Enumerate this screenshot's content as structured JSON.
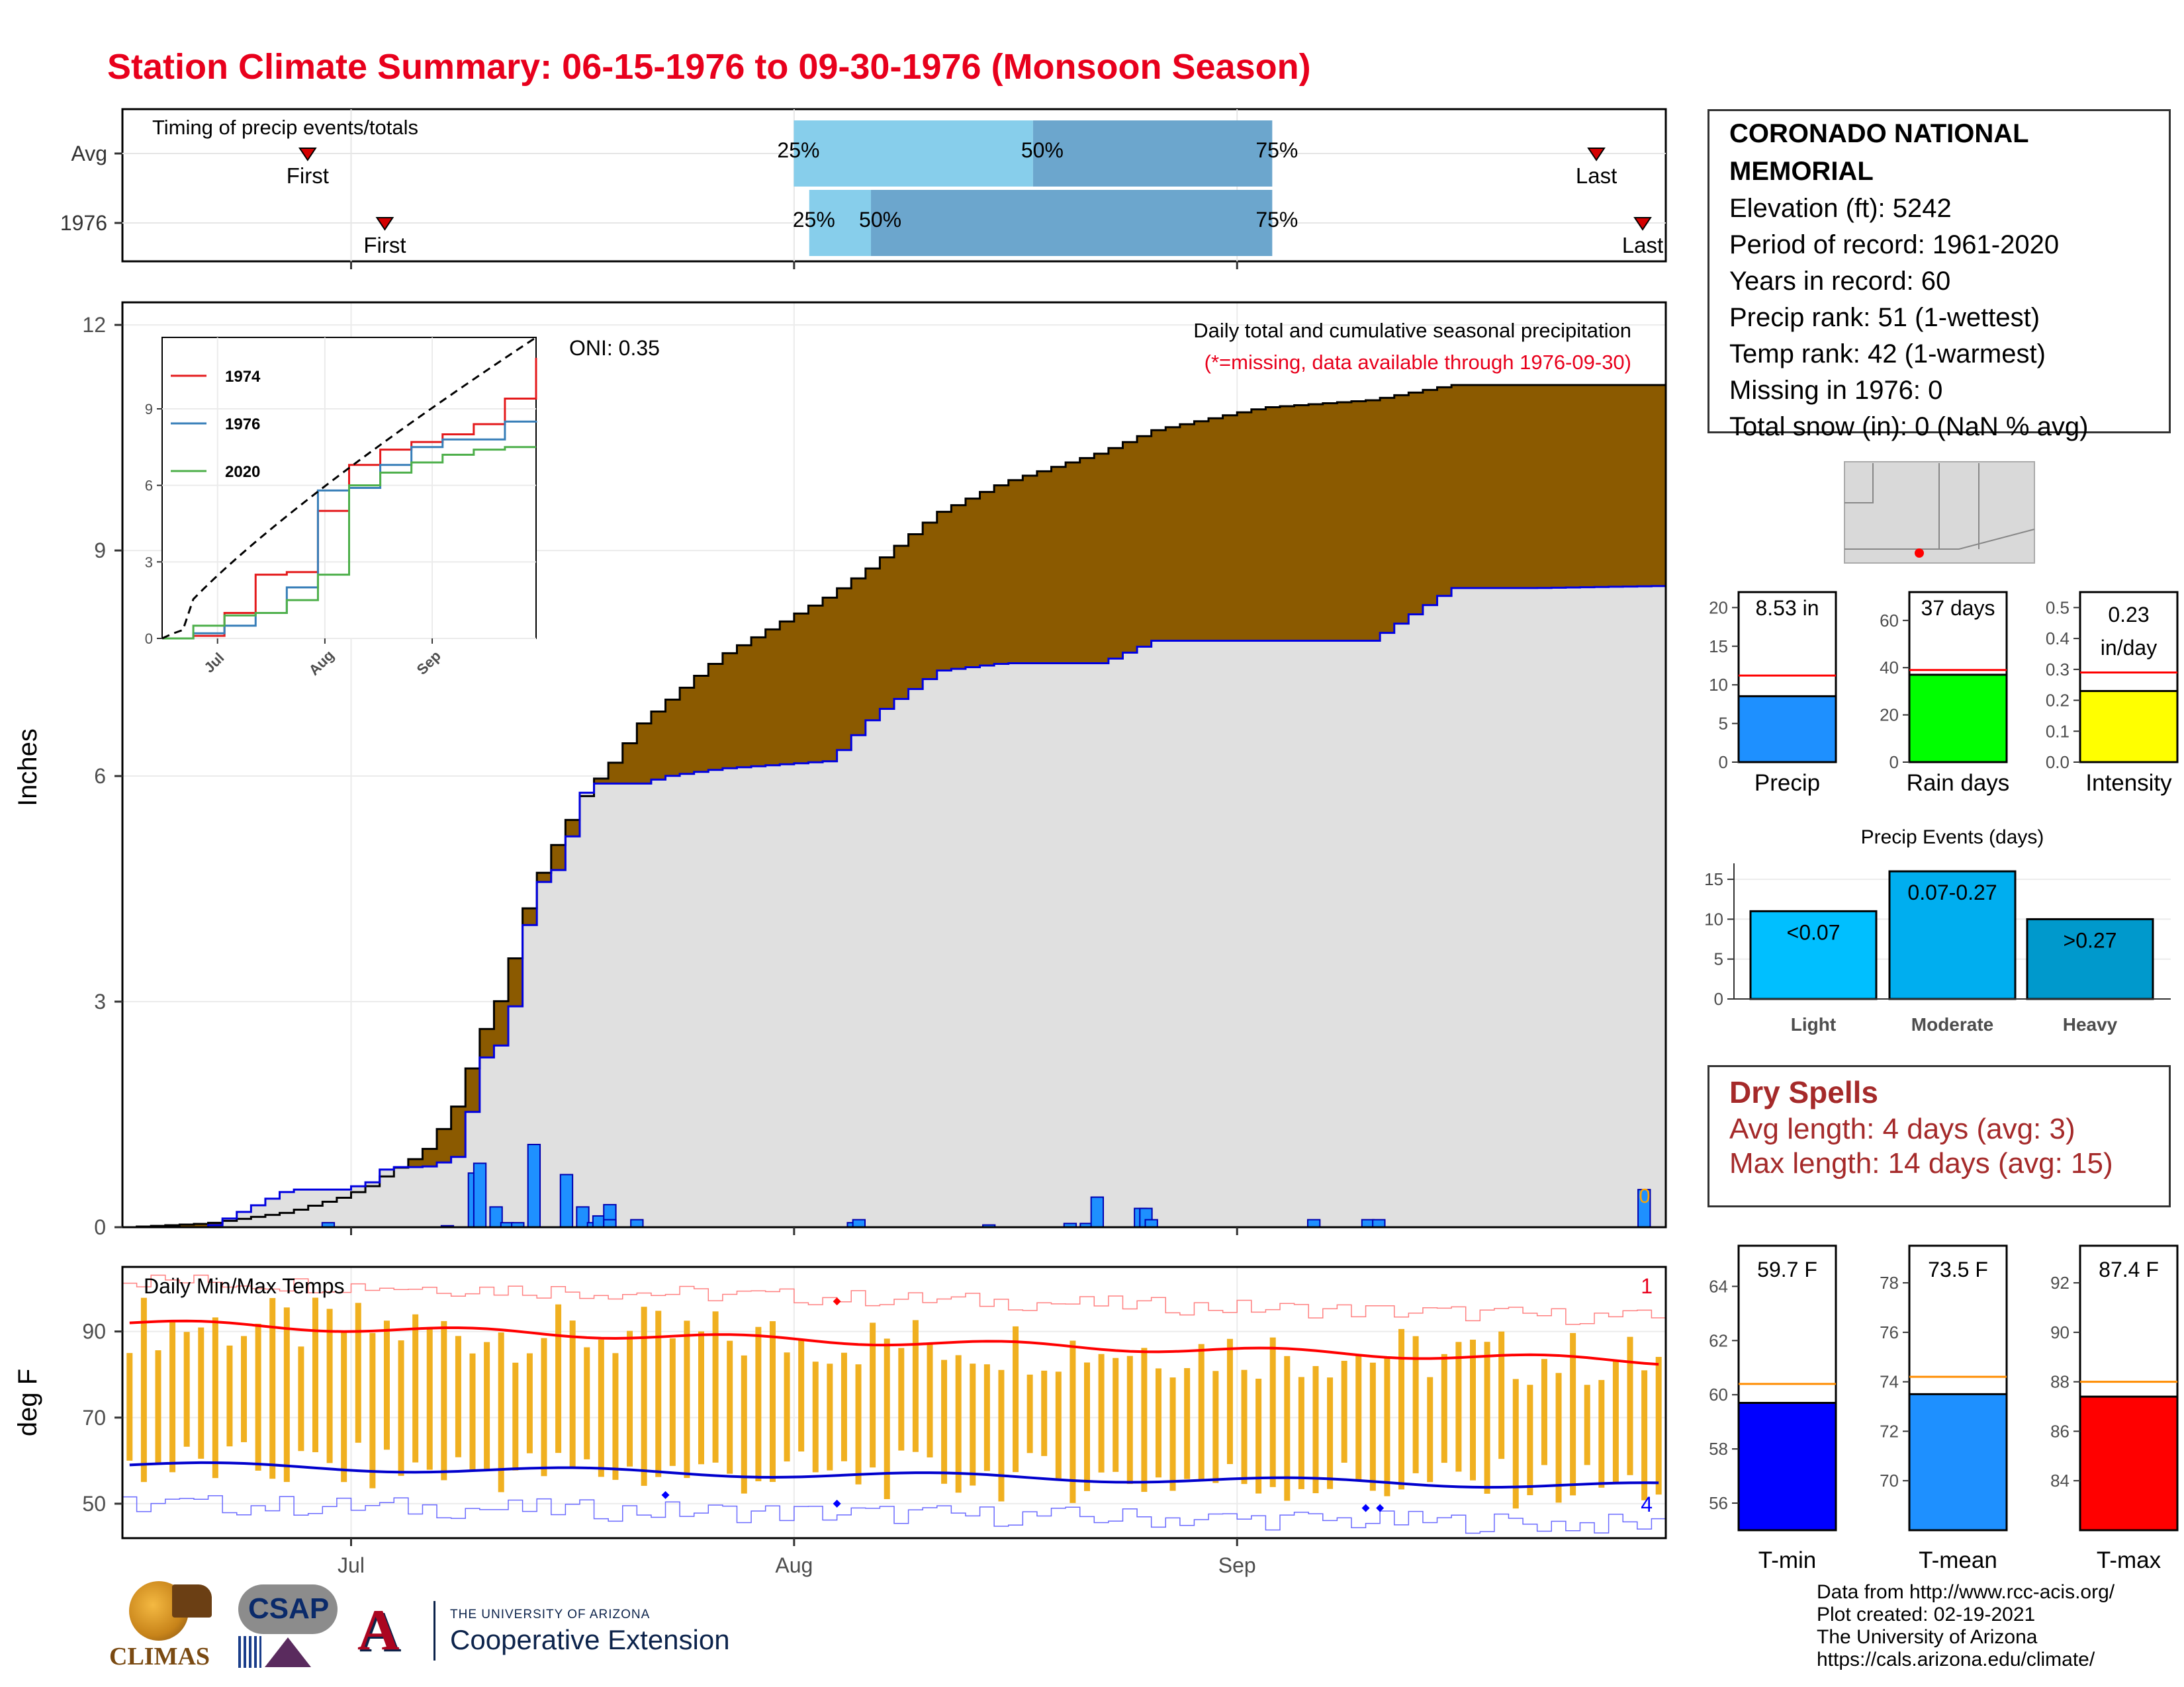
{
  "title": "Station Climate Summary: 06-15-1976 to 09-30-1976 (Monsoon Season)",
  "colors": {
    "title": "#e8001c",
    "brown": "#8b5a00",
    "green": "#008000",
    "grey": "#e0e0e0",
    "blue_bar": "#1e90ff",
    "tmax": "#ff0000",
    "tmin": "#0000cd",
    "range": "#f0b020",
    "avg_line": "#ff8c00",
    "dry": "#a52a2a"
  },
  "timing": {
    "title": "Timing of precip events/totals",
    "rows": [
      {
        "label": "Avg",
        "first": "First",
        "last": "Last",
        "p25": "25%",
        "p50": "50%",
        "p75": "75%",
        "first_day": 24,
        "p25_day": 87,
        "p50_day": 118,
        "p75_day": 149,
        "last_day": 191
      },
      {
        "label": "1976",
        "first": "First",
        "last": "Last",
        "p25": "25%",
        "p50": "50%",
        "p75": "75%",
        "first_day": 34,
        "p25_day": 89,
        "p50_day": 97,
        "p75_day": 149,
        "last_day": 197
      }
    ]
  },
  "station": {
    "name": "CORONADO NATIONAL MEMORIAL",
    "lines": [
      "Elevation (ft): 5242",
      "Period of record: 1961-2020",
      "Years in record: 60",
      "Precip rank: 51 (1-wettest)",
      "Temp rank: 42 (1-warmest)",
      "Missing in 1976: 0",
      "Total snow (in): 0 (NaN % avg)"
    ]
  },
  "main_chart": {
    "ylabel": "Inches",
    "yticks": [
      "0",
      "3",
      "6",
      "9",
      "12"
    ],
    "xticks": [
      "Jul",
      "Aug",
      "Sep"
    ],
    "oni": "ONI: 0.35",
    "subtitle": "Daily total and cumulative seasonal precipitation",
    "missing_note": "(*=missing, data available through 1976-09-30)",
    "missing_count": "0"
  },
  "inset": {
    "legend": [
      "1974",
      "1976",
      "2020"
    ],
    "yticks": [
      "0",
      "3",
      "6",
      "9"
    ],
    "xticks": [
      "Jul",
      "Aug",
      "Sep"
    ]
  },
  "temp_chart": {
    "ylabel": "deg F",
    "title": "Daily Min/Max Temps",
    "yticks": [
      "50",
      "70",
      "90"
    ],
    "xticks": [
      "Jul",
      "Aug",
      "Sep"
    ],
    "max_count": "1",
    "min_count": "4"
  },
  "mini_bars": [
    {
      "label": "Precip",
      "value_text": "8.53 in",
      "value": 8.53,
      "avg": 11.2,
      "ymax": 22,
      "ticks": [
        "0",
        "5",
        "10",
        "15",
        "20"
      ],
      "color": "#1e90ff"
    },
    {
      "label": "Rain days",
      "value_text": "37 days",
      "value": 37,
      "avg": 39,
      "ymax": 72,
      "ticks": [
        "0",
        "20",
        "40",
        "60"
      ],
      "color": "#00ff00"
    },
    {
      "label": "Intensity",
      "value_text": "0.23 in/day",
      "value": 0.23,
      "avg": 0.29,
      "ymax": 0.55,
      "ticks": [
        "0.0",
        "0.1",
        "0.2",
        "0.3",
        "0.4",
        "0.5"
      ],
      "color": "#ffff00"
    }
  ],
  "events": {
    "title": "Precip Events (days)",
    "ticks": [
      "0",
      "5",
      "10",
      "15"
    ],
    "bars": [
      {
        "category": "Light",
        "label": "<0.07",
        "value": 11,
        "color": "#00bfff"
      },
      {
        "category": "Moderate",
        "label": "0.07-0.27",
        "value": 16,
        "color": "#00aeef"
      },
      {
        "category": "Heavy",
        "label": ">0.27",
        "value": 10,
        "color": "#0099cc"
      }
    ]
  },
  "dry_spells": {
    "title": "Dry Spells",
    "avg": "Avg length: 4 days (avg: 3)",
    "max": "Max length: 14 days (avg: 15)"
  },
  "temp_bars": [
    {
      "label": "T-min",
      "value_text": "59.7 F",
      "value": 59.7,
      "avg": 60.4,
      "ymin": 55,
      "ymax": 65.5,
      "ticks": [
        "56",
        "58",
        "60",
        "62",
        "64"
      ],
      "color": "#0000ff"
    },
    {
      "label": "T-mean",
      "value_text": "73.5 F",
      "value": 73.5,
      "avg": 74.2,
      "ymin": 68,
      "ymax": 79.5,
      "ticks": [
        "70",
        "72",
        "74",
        "76",
        "78"
      ],
      "color": "#1e90ff"
    },
    {
      "label": "T-max",
      "value_text": "87.4 F",
      "value": 87.4,
      "avg": 88.0,
      "ymin": 82,
      "ymax": 93.5,
      "ticks": [
        "84",
        "86",
        "88",
        "90",
        "92"
      ],
      "color": "#ff0000"
    }
  ],
  "footer": [
    "Data from http://www.rcc-acis.org/",
    "Plot created: 02-19-2021",
    "The University of Arizona",
    "https://cals.arizona.edu/climate/"
  ],
  "logos": {
    "climas": "CLIMAS",
    "csap": "CSAP",
    "ua_small": "THE UNIVERSITY OF ARIZONA",
    "ua_big": "Cooperative Extension"
  },
  "chart_data": [
    {
      "type": "area",
      "title": "Daily total and cumulative seasonal precipitation",
      "ylabel": "Inches",
      "ylim": [
        0,
        12.3
      ],
      "x_days_from_jun15": [
        0,
        15,
        30,
        40,
        45,
        48,
        55,
        60,
        62,
        65,
        70,
        72,
        75,
        80,
        85,
        90,
        95,
        100,
        110,
        130,
        138,
        150,
        162,
        180,
        190,
        210,
        230,
        245,
        260,
        285
      ],
      "cumulative_1976": [
        0,
        0.0,
        0.5,
        0.5,
        0.6,
        0.8,
        0.8,
        0.9,
        1.0,
        2.2,
        2.5,
        3.2,
        4.5,
        4.8,
        5.9,
        5.9,
        5.9,
        6.0,
        6.1,
        6.2,
        6.8,
        7.4,
        7.5,
        7.5,
        7.8,
        7.8,
        7.8,
        8.5,
        8.5,
        8.53
      ],
      "cumulative_avg": [
        0,
        0.05,
        0.2,
        0.4,
        0.55,
        0.7,
        1.0,
        1.5,
        1.8,
        2.5,
        3.2,
        3.8,
        4.5,
        5.2,
        5.8,
        6.2,
        6.7,
        7.0,
        7.6,
        8.4,
        8.8,
        9.5,
        9.9,
        10.3,
        10.6,
        10.9,
        11.0,
        11.2,
        11.2,
        11.2
      ],
      "daily_1976_days": [
        38,
        60,
        65,
        66,
        69,
        71,
        73,
        76,
        82,
        85,
        87,
        88,
        90,
        90,
        95,
        135,
        136,
        160,
        175,
        178,
        180,
        188,
        189,
        190,
        220,
        230,
        232,
        281
      ],
      "daily_1976_values": [
        0.06,
        0.02,
        0.72,
        0.85,
        0.27,
        0.06,
        0.06,
        1.1,
        0.7,
        0.27,
        0.06,
        0.15,
        0.3,
        0.1,
        0.1,
        0.06,
        0.1,
        0.03,
        0.05,
        0.05,
        0.4,
        0.25,
        0.25,
        0.1,
        0.1,
        0.1,
        0.1,
        0.5
      ]
    },
    {
      "type": "line",
      "title": "inset cumulative precipitation",
      "series": [
        {
          "name": "1974",
          "values": [
            0,
            0.1,
            1.0,
            2.5,
            2.6,
            5.0,
            6.8,
            7.4,
            7.7,
            8.0,
            8.4,
            9.4,
            11.0
          ]
        },
        {
          "name": "1976",
          "values": [
            0,
            0.2,
            0.5,
            1.0,
            2.0,
            5.8,
            5.9,
            6.8,
            7.5,
            7.8,
            7.8,
            8.5,
            8.53
          ]
        },
        {
          "name": "2020",
          "values": [
            0,
            0.5,
            0.9,
            1.0,
            1.5,
            2.5,
            6.0,
            6.5,
            6.9,
            7.2,
            7.4,
            7.5,
            7.5
          ]
        }
      ],
      "x_days": [
        0,
        10,
        20,
        30,
        40,
        50,
        60,
        70,
        80,
        90,
        100,
        110,
        108
      ]
    },
    {
      "type": "bar",
      "title": "Daily Min/Max Temps",
      "ylabel": "deg F",
      "ylim": [
        42,
        105
      ],
      "avg_tmax_start": 92,
      "avg_tmax_end": 83,
      "avg_tmin_start": 59,
      "avg_tmin_end": 54
    },
    {
      "type": "bar",
      "title": "Precip Events (days)",
      "categories": [
        "Light",
        "Moderate",
        "Heavy"
      ],
      "values": [
        11,
        16,
        10
      ]
    },
    {
      "type": "bar",
      "categories": [
        "Precip",
        "Rain days",
        "Intensity"
      ],
      "values": [
        8.53,
        37,
        0.23
      ]
    },
    {
      "type": "bar",
      "categories": [
        "T-min",
        "T-mean",
        "T-max"
      ],
      "values": [
        59.7,
        73.5,
        87.4
      ]
    }
  ]
}
